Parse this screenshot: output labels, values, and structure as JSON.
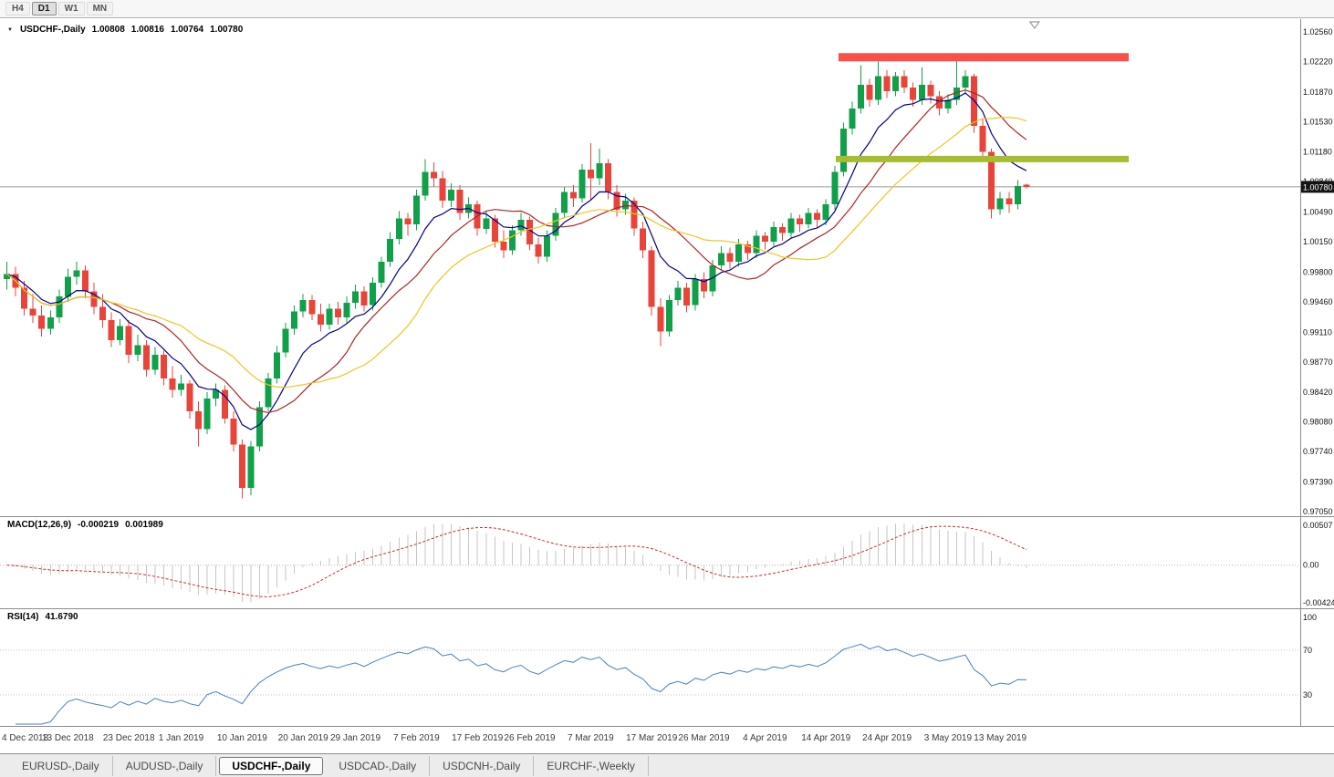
{
  "toolbar": {
    "timeframes": [
      {
        "label": "H4",
        "active": false
      },
      {
        "label": "D1",
        "active": true
      },
      {
        "label": "W1",
        "active": false
      },
      {
        "label": "MN",
        "active": false
      }
    ]
  },
  "chart": {
    "title": "USDCHF-,Daily",
    "ohlc": [
      "1.00808",
      "1.00816",
      "1.00764",
      "1.00780"
    ],
    "colors": {
      "candle_up": "#10a04a",
      "candle_down": "#e8443a",
      "bid_line": "#9b9b9b",
      "bid_badge_bg": "#141414",
      "macd_histogram": "#c6c6c6",
      "macd_signal": "#c03328",
      "rsi_line": "#4a80c0"
    }
  },
  "chart_data": {
    "type": "candlestick",
    "symbol": "USDCHF-",
    "timeframe": "Daily",
    "y_axis": {
      "min": 0.9705,
      "max": 1.0256
    },
    "price_scale_labels": [
      "1.02560",
      "1.02220",
      "1.01870",
      "1.01530",
      "1.01180",
      "1.00840",
      "1.00490",
      "1.00150",
      "0.99800",
      "0.99460",
      "0.99110",
      "0.98770",
      "0.98420",
      "0.98080",
      "0.97740",
      "0.97390",
      "0.97050"
    ],
    "bid": {
      "price": 1.0078,
      "label": "1.00780"
    },
    "candles": [
      [
        0.9972,
        0.9992,
        0.996,
        0.9978
      ],
      [
        0.9978,
        0.9986,
        0.9952,
        0.9962
      ],
      [
        0.9962,
        0.997,
        0.993,
        0.9938
      ],
      [
        0.9938,
        0.9955,
        0.9922,
        0.993
      ],
      [
        0.993,
        0.9942,
        0.9906,
        0.9915
      ],
      [
        0.9915,
        0.9936,
        0.9908,
        0.9928
      ],
      [
        0.9928,
        0.996,
        0.9922,
        0.9952
      ],
      [
        0.9952,
        0.9984,
        0.9946,
        0.9975
      ],
      [
        0.9975,
        0.9992,
        0.9966,
        0.9982
      ],
      [
        0.9982,
        0.9988,
        0.995,
        0.9958
      ],
      [
        0.9958,
        0.9968,
        0.9932,
        0.994
      ],
      [
        0.994,
        0.9955,
        0.9916,
        0.9925
      ],
      [
        0.9925,
        0.9934,
        0.9894,
        0.9902
      ],
      [
        0.9902,
        0.9926,
        0.9896,
        0.9918
      ],
      [
        0.9918,
        0.9925,
        0.9876,
        0.9885
      ],
      [
        0.9885,
        0.9908,
        0.9878,
        0.9896
      ],
      [
        0.9896,
        0.9902,
        0.986,
        0.9868
      ],
      [
        0.9868,
        0.9894,
        0.9862,
        0.9885
      ],
      [
        0.9885,
        0.989,
        0.985,
        0.9858
      ],
      [
        0.9858,
        0.9872,
        0.9836,
        0.9845
      ],
      [
        0.9845,
        0.9862,
        0.9838,
        0.9852
      ],
      [
        0.9852,
        0.9856,
        0.9812,
        0.982
      ],
      [
        0.982,
        0.9832,
        0.978,
        0.98
      ],
      [
        0.98,
        0.9842,
        0.9794,
        0.9835
      ],
      [
        0.9835,
        0.9852,
        0.9826,
        0.9845
      ],
      [
        0.9845,
        0.985,
        0.9806,
        0.9812
      ],
      [
        0.9812,
        0.982,
        0.9774,
        0.9782
      ],
      [
        0.9782,
        0.9788,
        0.972,
        0.9732
      ],
      [
        0.9732,
        0.9786,
        0.9724,
        0.978
      ],
      [
        0.978,
        0.9832,
        0.9774,
        0.9825
      ],
      [
        0.9825,
        0.9864,
        0.982,
        0.9858
      ],
      [
        0.9858,
        0.9895,
        0.9852,
        0.9888
      ],
      [
        0.9888,
        0.9922,
        0.9882,
        0.9915
      ],
      [
        0.9915,
        0.9942,
        0.9908,
        0.9935
      ],
      [
        0.9935,
        0.9955,
        0.9928,
        0.9948
      ],
      [
        0.9948,
        0.9954,
        0.9925,
        0.9932
      ],
      [
        0.9932,
        0.9944,
        0.9912,
        0.992
      ],
      [
        0.992,
        0.9944,
        0.9914,
        0.9938
      ],
      [
        0.9938,
        0.9946,
        0.992,
        0.9928
      ],
      [
        0.9928,
        0.9952,
        0.9922,
        0.9945
      ],
      [
        0.9945,
        0.9966,
        0.9938,
        0.9958
      ],
      [
        0.9958,
        0.9964,
        0.9935,
        0.9942
      ],
      [
        0.9942,
        0.9974,
        0.9936,
        0.9968
      ],
      [
        0.9968,
        0.9998,
        0.9962,
        0.9992
      ],
      [
        0.9992,
        1.0026,
        0.9986,
        1.0018
      ],
      [
        1.0018,
        1.005,
        1.0012,
        1.0042
      ],
      [
        1.0042,
        1.0048,
        1.0022,
        1.0035
      ],
      [
        1.0035,
        1.0075,
        1.0028,
        1.0068
      ],
      [
        1.0068,
        1.011,
        1.0062,
        1.0095
      ],
      [
        1.0095,
        1.0106,
        1.0078,
        1.0088
      ],
      [
        1.0088,
        1.0096,
        1.0054,
        1.0062
      ],
      [
        1.0062,
        1.0082,
        1.0055,
        1.0075
      ],
      [
        1.0075,
        1.008,
        1.004,
        1.0048
      ],
      [
        1.0048,
        1.0066,
        1.0042,
        1.0058
      ],
      [
        1.0058,
        1.0062,
        1.0022,
        1.003
      ],
      [
        1.003,
        1.005,
        1.0024,
        1.0042
      ],
      [
        1.0042,
        1.0046,
        1.0008,
        1.0015
      ],
      [
        1.0015,
        1.0028,
        0.9996,
        1.0005
      ],
      [
        1.0005,
        1.0034,
        1.0,
        1.0028
      ],
      [
        1.0028,
        1.0048,
        1.0022,
        1.004
      ],
      [
        1.004,
        1.0044,
        1.0005,
        1.0012
      ],
      [
        1.0012,
        1.002,
        0.999,
        0.9998
      ],
      [
        0.9998,
        1.0028,
        0.9992,
        1.0022
      ],
      [
        1.0022,
        1.0054,
        1.0016,
        1.0048
      ],
      [
        1.0048,
        1.0078,
        1.0042,
        1.0072
      ],
      [
        1.0072,
        1.008,
        1.0055,
        1.0065
      ],
      [
        1.0065,
        1.0104,
        1.006,
        1.0098
      ],
      [
        1.0098,
        1.0128,
        1.0062,
        1.0088
      ],
      [
        1.0088,
        1.0122,
        1.008,
        1.0105
      ],
      [
        1.0105,
        1.011,
        1.0064,
        1.0072
      ],
      [
        1.0072,
        1.008,
        1.0044,
        1.0052
      ],
      [
        1.0052,
        1.007,
        1.0046,
        1.0062
      ],
      [
        1.0062,
        1.0066,
        1.0022,
        1.003
      ],
      [
        1.003,
        1.0038,
        0.9996,
        1.0005
      ],
      [
        1.0005,
        1.001,
        0.993,
        0.994
      ],
      [
        0.994,
        0.995,
        0.9895,
        0.9912
      ],
      [
        0.9912,
        0.9954,
        0.9906,
        0.9948
      ],
      [
        0.9948,
        0.997,
        0.9942,
        0.9962
      ],
      [
        0.9962,
        0.9968,
        0.9934,
        0.9942
      ],
      [
        0.9942,
        0.9978,
        0.9936,
        0.9972
      ],
      [
        0.9972,
        0.998,
        0.995,
        0.9958
      ],
      [
        0.9958,
        0.9994,
        0.9952,
        0.9988
      ],
      [
        0.9988,
        1.001,
        0.9982,
        1.0002
      ],
      [
        1.0002,
        1.0008,
        0.9984,
        0.9992
      ],
      [
        0.9992,
        1.0018,
        0.9986,
        1.0012
      ],
      [
        1.0012,
        1.0016,
        0.9994,
        1.0002
      ],
      [
        1.0002,
        1.0028,
        0.9996,
        1.0022
      ],
      [
        1.0022,
        1.0026,
        1.0006,
        1.0015
      ],
      [
        1.0015,
        1.0038,
        1.001,
        1.0032
      ],
      [
        1.0032,
        1.0036,
        1.0016,
        1.0025
      ],
      [
        1.0025,
        1.0048,
        1.002,
        1.0042
      ],
      [
        1.0042,
        1.0046,
        1.0026,
        1.0035
      ],
      [
        1.0035,
        1.0054,
        1.003,
        1.0048
      ],
      [
        1.0048,
        1.0052,
        1.003,
        1.004
      ],
      [
        1.004,
        1.0064,
        1.0034,
        1.0058
      ],
      [
        1.0058,
        1.0102,
        1.0052,
        1.0095
      ],
      [
        1.0095,
        1.0152,
        1.009,
        1.0145
      ],
      [
        1.0145,
        1.0176,
        1.0138,
        1.0168
      ],
      [
        1.0168,
        1.0218,
        1.0162,
        1.0195
      ],
      [
        1.0195,
        1.0202,
        1.017,
        1.0178
      ],
      [
        1.0178,
        1.0222,
        1.0172,
        1.0205
      ],
      [
        1.0205,
        1.0212,
        1.018,
        1.0188
      ],
      [
        1.0188,
        1.021,
        1.0182,
        1.0205
      ],
      [
        1.0205,
        1.0212,
        1.0186,
        1.0192
      ],
      [
        1.0192,
        1.0198,
        1.017,
        1.0178
      ],
      [
        1.0178,
        1.0215,
        1.0172,
        1.0195
      ],
      [
        1.0195,
        1.02,
        1.0174,
        1.0182
      ],
      [
        1.0182,
        1.0188,
        1.016,
        1.0168
      ],
      [
        1.0168,
        1.0184,
        1.0162,
        1.0178
      ],
      [
        1.0178,
        1.0224,
        1.0172,
        1.0192
      ],
      [
        1.0192,
        1.0212,
        1.0186,
        1.0205
      ],
      [
        1.0205,
        1.0208,
        1.014,
        1.0148
      ],
      [
        1.0148,
        1.0156,
        1.0108,
        1.0118
      ],
      [
        1.0118,
        1.0122,
        1.0042,
        1.0052
      ],
      [
        1.0052,
        1.0072,
        1.0046,
        1.0065
      ],
      [
        1.0065,
        1.0072,
        1.0048,
        1.0058
      ],
      [
        1.0058,
        1.0086,
        1.0052,
        1.0079
      ],
      [
        1.00808,
        1.00816,
        1.00764,
        1.0078
      ]
    ],
    "x_axis_labels": [
      {
        "i": 0,
        "text": "4 Dec 2018"
      },
      {
        "i": 7,
        "text": "13 Dec 2018"
      },
      {
        "i": 14,
        "text": "23 Dec 2018"
      },
      {
        "i": 20,
        "text": "1 Jan 2019"
      },
      {
        "i": 27,
        "text": "10 Jan 2019"
      },
      {
        "i": 34,
        "text": "20 Jan 2019"
      },
      {
        "i": 40,
        "text": "29 Jan 2019"
      },
      {
        "i": 47,
        "text": "7 Feb 2019"
      },
      {
        "i": 54,
        "text": "17 Feb 2019"
      },
      {
        "i": 60,
        "text": "26 Feb 2019"
      },
      {
        "i": 67,
        "text": "7 Mar 2019"
      },
      {
        "i": 74,
        "text": "17 Mar 2019"
      },
      {
        "i": 80,
        "text": "26 Mar 2019"
      },
      {
        "i": 87,
        "text": "4 Apr 2019"
      },
      {
        "i": 94,
        "text": "14 Apr 2019"
      },
      {
        "i": 101,
        "text": "24 Apr 2019"
      },
      {
        "i": 108,
        "text": "3 May 2019"
      },
      {
        "i": 114,
        "text": "13 May 2019"
      }
    ],
    "indicators": {
      "moving_averages": [
        {
          "period": 8,
          "method": "ema",
          "color": "#00008B"
        },
        {
          "period": 13,
          "method": "sma",
          "color": "#B22222"
        },
        {
          "period": 21,
          "method": "sma",
          "color": "#EDC51E"
        }
      ],
      "macd": {
        "label": "MACD(12,26,9)",
        "fast": 12,
        "slow": 26,
        "signal": 9,
        "values": [
          "-0.000219",
          "0.001989"
        ],
        "scale_labels": [
          "0.00507",
          "0.00",
          "-0.00424"
        ]
      },
      "rsi": {
        "label": "RSI(14)",
        "period": 14,
        "value": "41.6790",
        "levels": [
          70,
          30
        ],
        "scale_labels": [
          "100",
          "70",
          "30"
        ]
      }
    },
    "objects": [
      {
        "name": "resistance-line",
        "type": "horizontal-line",
        "price": 1.0227,
        "color": "#FB4F47",
        "thickness": 9,
        "x_from": 0.645,
        "x_to": 0.868
      },
      {
        "name": "support-line",
        "type": "horizontal-line",
        "price": 1.011,
        "color": "#A6BD2F",
        "thickness": 7,
        "x_from": 0.643,
        "x_to": 0.868
      }
    ]
  },
  "tabs": [
    {
      "label": "EURUSD-,Daily",
      "active": false
    },
    {
      "label": "AUDUSD-,Daily",
      "active": false
    },
    {
      "label": "USDCHF-,Daily",
      "active": true
    },
    {
      "label": "USDCAD-,Daily",
      "active": false
    },
    {
      "label": "USDCNH-,Daily",
      "active": false
    },
    {
      "label": "EURCHF-,Weekly",
      "active": false
    }
  ]
}
